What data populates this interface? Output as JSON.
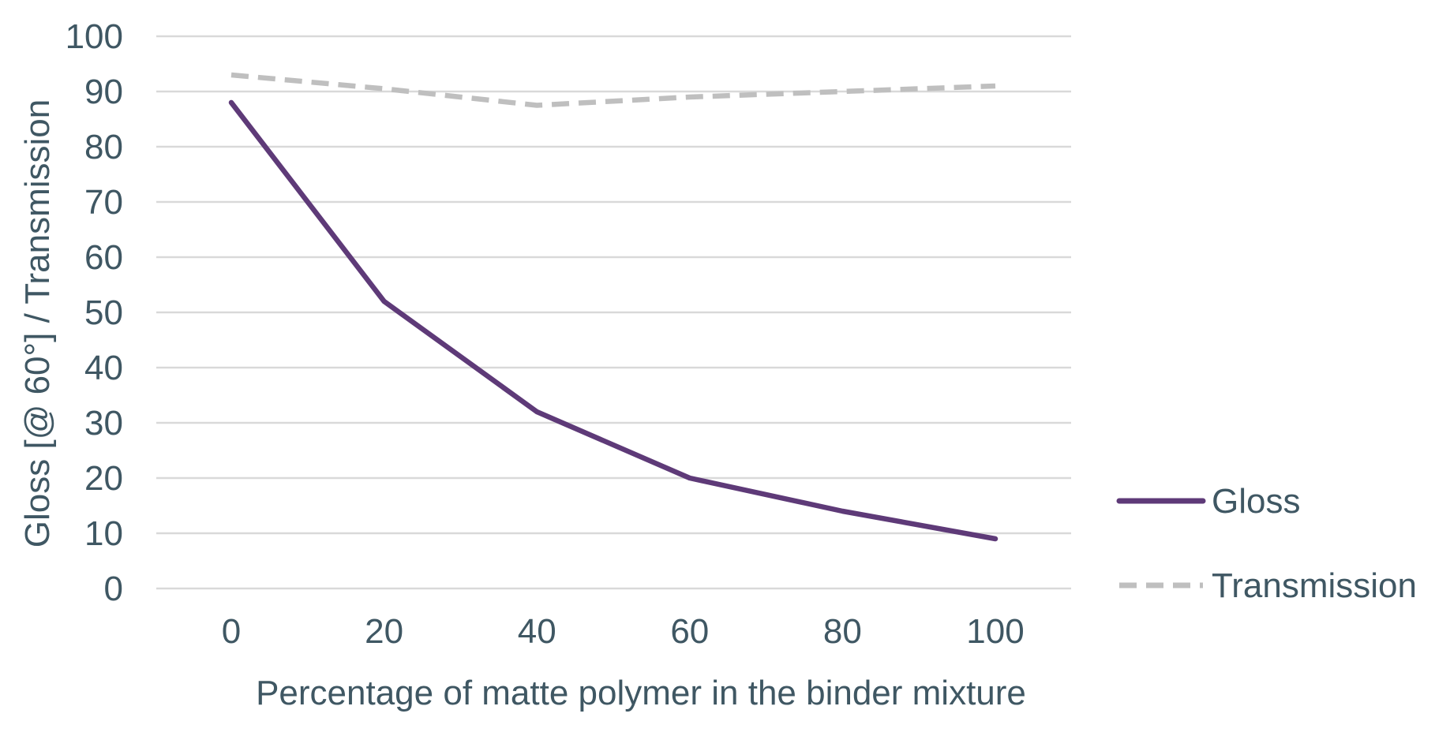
{
  "chart_data": {
    "type": "line",
    "x": [
      0,
      20,
      40,
      60,
      80,
      100
    ],
    "x_tick_labels": [
      "0",
      "20",
      "40",
      "60",
      "80",
      "100"
    ],
    "y_tick_labels": [
      "0",
      "10",
      "20",
      "30",
      "40",
      "50",
      "60",
      "70",
      "80",
      "90",
      "100"
    ],
    "xlabel": "Percentage of matte polymer in the binder mixture",
    "ylabel": "Gloss [@ 60°]  / Transmission",
    "ylim": [
      0,
      100
    ],
    "grid": "horizontal",
    "legend_position": "right",
    "series": [
      {
        "name": "Gloss",
        "values": [
          88,
          52,
          32,
          20,
          14,
          9
        ],
        "color": "#5e3a78",
        "style": "solid"
      },
      {
        "name": "Transmission",
        "values": [
          93,
          90.5,
          87.5,
          89,
          90,
          91
        ],
        "color": "#bfbfbf",
        "style": "dashed"
      }
    ],
    "colors": {
      "text": "#3f5763",
      "grid": "#d9d9d9"
    }
  }
}
